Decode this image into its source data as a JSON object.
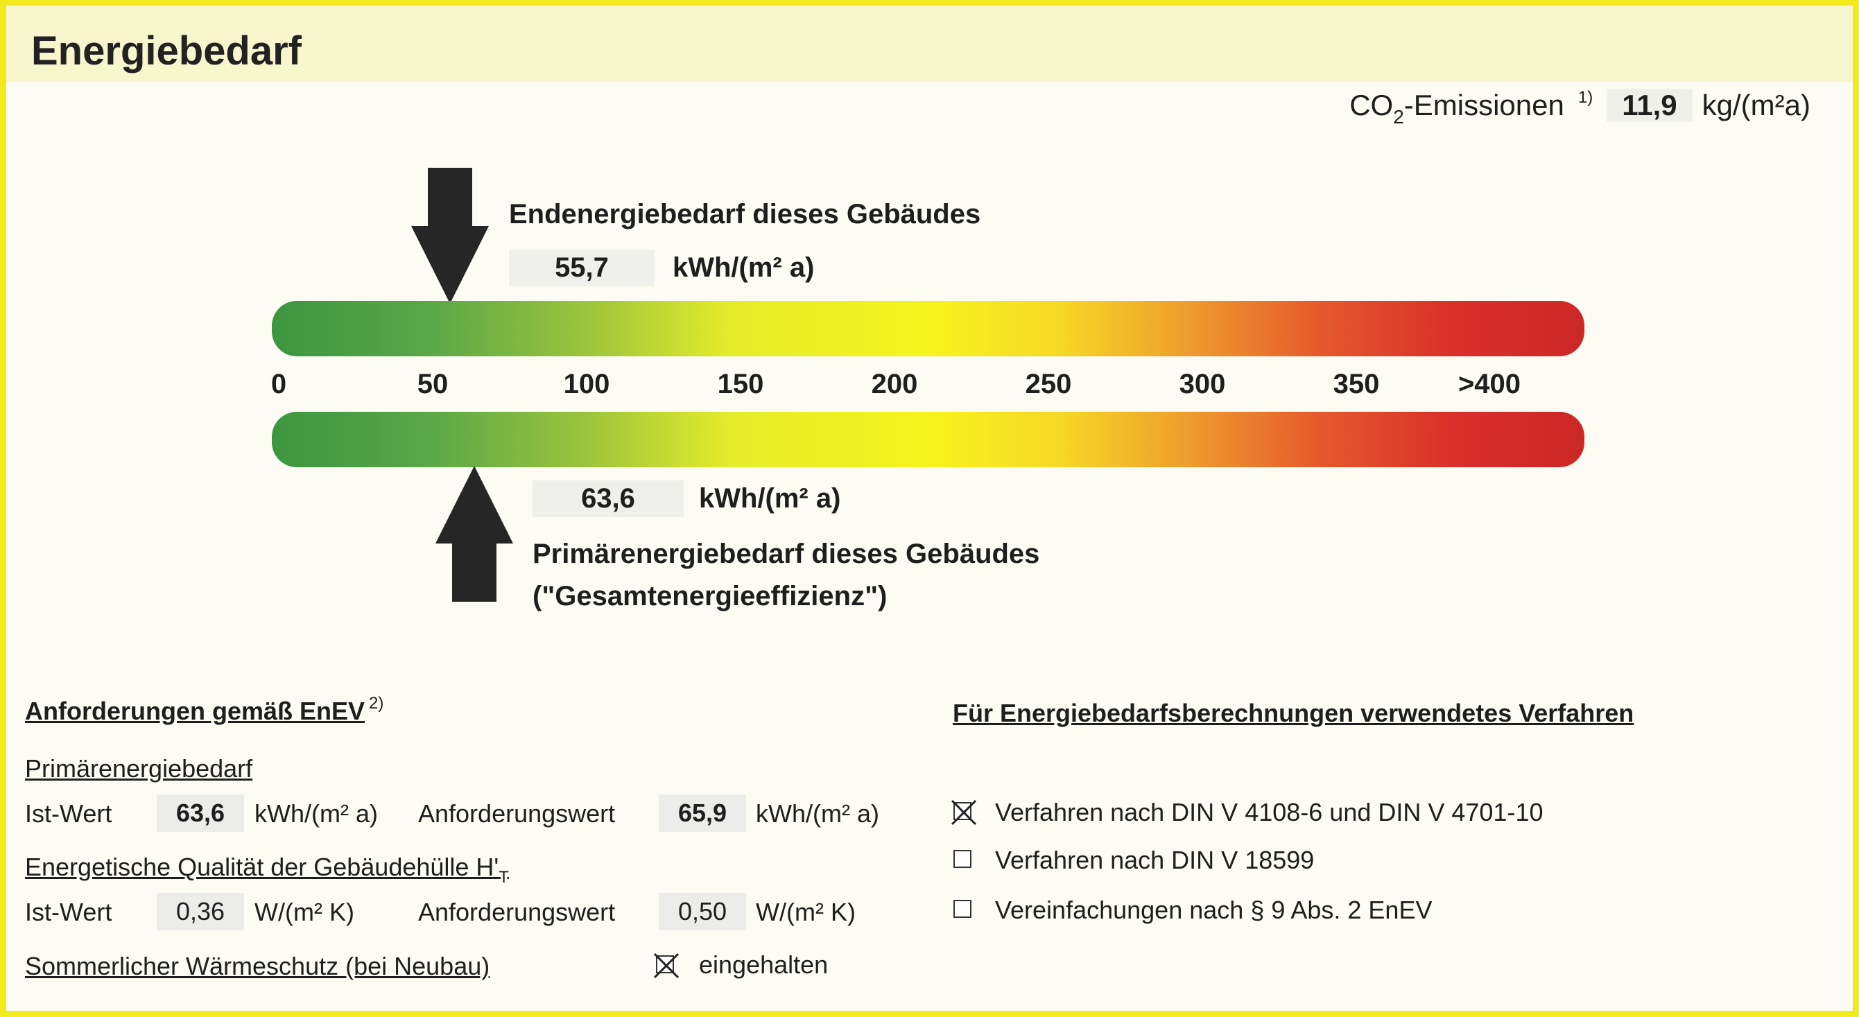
{
  "title": "Energiebedarf",
  "co2": {
    "label_main": "CO",
    "label_sub": "2",
    "label_rest": "-Emissionen",
    "footnote": "1)",
    "value": "11,9",
    "unit": "kg/(m²a)"
  },
  "endenergie": {
    "label": "Endenergiebedarf dieses Gebäudes",
    "value": "55,7",
    "unit": "kWh/(m² a)",
    "scale_value": 55.7
  },
  "primaerenergie": {
    "label_line1": "Primärenergiebedarf dieses Gebäudes",
    "label_line2": "(\"Gesamtenergieeffizienz\")",
    "value": "63,6",
    "unit": "kWh/(m² a)",
    "scale_value": 63.6
  },
  "scale": {
    "ticks": [
      "0",
      "50",
      "100",
      "150",
      "200",
      "250",
      "300",
      "350",
      ">400"
    ],
    "min": 0,
    "max": 425
  },
  "requirements": {
    "heading": "Anforderungen gemäß EnEV",
    "heading_footnote": "2)",
    "primaer_heading": "Primärenergiebedarf",
    "primaer_ist_label": "Ist-Wert",
    "primaer_ist_value": "63,6",
    "primaer_ist_unit": "kWh/(m² a)",
    "primaer_anf_label": "Anforderungswert",
    "primaer_anf_value": "65,9",
    "primaer_anf_unit": "kWh/(m² a)",
    "huelle_heading": "Energetische Qualität der Gebäudehülle H'",
    "huelle_heading_sub": "T",
    "huelle_ist_label": "Ist-Wert",
    "huelle_ist_value": "0,36",
    "huelle_ist_unit": "W/(m² K)",
    "huelle_anf_label": "Anforderungswert",
    "huelle_anf_value": "0,50",
    "huelle_anf_unit": "W/(m² K)",
    "sommer_heading": "Sommerlicher Wärmeschutz (bei Neubau)",
    "sommer_label": "eingehalten",
    "sommer_checked": true
  },
  "verfahren": {
    "heading": "Für Energiebedarfsberechnungen verwendetes Verfahren",
    "options": [
      {
        "label": "Verfahren nach DIN V 4108-6 und DIN V 4701-10",
        "checked": true
      },
      {
        "label": "Verfahren nach DIN V 18599",
        "checked": false
      },
      {
        "label": "Vereinfachungen nach § 9 Abs. 2 EnEV",
        "checked": false
      }
    ]
  }
}
